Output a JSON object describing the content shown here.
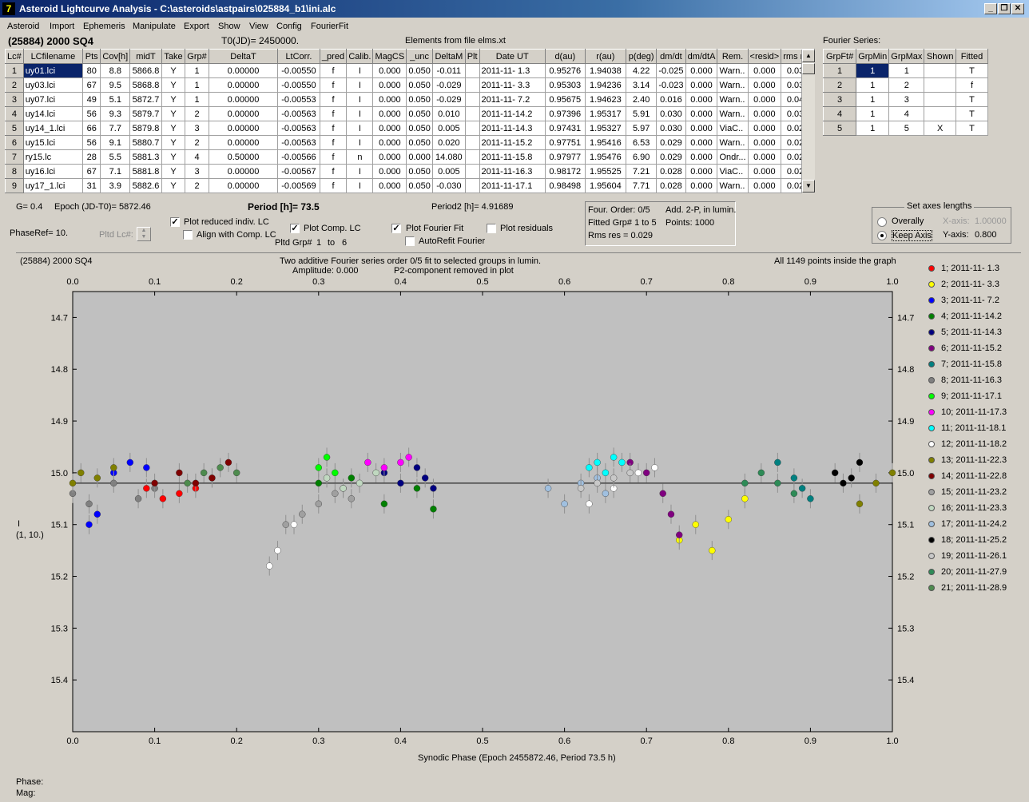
{
  "window": {
    "title": "Asteroid Lightcurve Analysis - C:\\asteroids\\astpairs\\025884_b1\\ini.alc",
    "icon": "7"
  },
  "menu": [
    "Asteroid",
    "Import",
    "Ephemeris",
    "Manipulate",
    "Export",
    "Show",
    "View",
    "Config",
    "FourierFit"
  ],
  "header": {
    "object": "(25884) 2000 SQ4",
    "t0": "T0(JD)= 2450000.",
    "elements": "Elements from file elms.xt",
    "fourier_title": "Fourier Series:"
  },
  "lc_table": {
    "columns": [
      "Lc#",
      "LCfilename",
      "Pts",
      "Cov[h]",
      "midT",
      "Take",
      "Grp#",
      "DeltaT",
      "LtCorr.",
      "_pred",
      "Calib.",
      "MagCS",
      "_unc",
      "DeltaM",
      "Plt",
      "Date UT",
      "d(au)",
      "r(au)",
      "p(deg)",
      "dm/dt",
      "dm/dtA",
      "Rem.",
      "<resid>",
      "rms res"
    ],
    "rows": [
      [
        "1",
        "uy01.lci",
        "80",
        "8.8",
        "5866.8",
        "Y",
        "1",
        "0.00000",
        "-0.00550",
        "f",
        "I",
        "0.000",
        "0.050",
        "-0.011",
        "",
        "2011-11- 1.3",
        "0.95276",
        "1.94038",
        "4.22",
        "-0.025",
        "0.000",
        "Warn..",
        "0.000",
        "0.031"
      ],
      [
        "2",
        "uy03.lci",
        "67",
        "9.5",
        "5868.8",
        "Y",
        "1",
        "0.00000",
        "-0.00550",
        "f",
        "I",
        "0.000",
        "0.050",
        "-0.029",
        "",
        "2011-11- 3.3",
        "0.95303",
        "1.94236",
        "3.14",
        "-0.023",
        "0.000",
        "Warn..",
        "0.000",
        "0.031"
      ],
      [
        "3",
        "uy07.lci",
        "49",
        "5.1",
        "5872.7",
        "Y",
        "1",
        "0.00000",
        "-0.00553",
        "f",
        "I",
        "0.000",
        "0.050",
        "-0.029",
        "",
        "2011-11- 7.2",
        "0.95675",
        "1.94623",
        "2.40",
        "0.016",
        "0.000",
        "Warn..",
        "0.000",
        "0.045"
      ],
      [
        "4",
        "uy14.lci",
        "56",
        "9.3",
        "5879.7",
        "Y",
        "2",
        "0.00000",
        "-0.00563",
        "f",
        "I",
        "0.000",
        "0.050",
        "0.010",
        "",
        "2011-11-14.2",
        "0.97396",
        "1.95317",
        "5.91",
        "0.030",
        "0.000",
        "Warn..",
        "0.000",
        "0.033"
      ],
      [
        "5",
        "uy14_1.lci",
        "66",
        "7.7",
        "5879.8",
        "Y",
        "3",
        "0.00000",
        "-0.00563",
        "f",
        "I",
        "0.000",
        "0.050",
        "0.005",
        "",
        "2011-11-14.3",
        "0.97431",
        "1.95327",
        "5.97",
        "0.030",
        "0.000",
        "ViaC..",
        "0.000",
        "0.027"
      ],
      [
        "6",
        "uy15.lci",
        "56",
        "9.1",
        "5880.7",
        "Y",
        "2",
        "0.00000",
        "-0.00563",
        "f",
        "I",
        "0.000",
        "0.050",
        "0.020",
        "",
        "2011-11-15.2",
        "0.97751",
        "1.95416",
        "6.53",
        "0.029",
        "0.000",
        "Warn..",
        "0.000",
        "0.028"
      ],
      [
        "7",
        "ry15.lc",
        "28",
        "5.5",
        "5881.3",
        "Y",
        "4",
        "0.50000",
        "-0.00566",
        "f",
        "n",
        "0.000",
        "0.000",
        "14.080",
        "",
        "2011-11-15.8",
        "0.97977",
        "1.95476",
        "6.90",
        "0.029",
        "0.000",
        "Ondr...",
        "0.000",
        "0.023"
      ],
      [
        "8",
        "uy16.lci",
        "67",
        "7.1",
        "5881.8",
        "Y",
        "3",
        "0.00000",
        "-0.00567",
        "f",
        "I",
        "0.000",
        "0.050",
        "0.005",
        "",
        "2011-11-16.3",
        "0.98172",
        "1.95525",
        "7.21",
        "0.028",
        "0.000",
        "ViaC..",
        "0.000",
        "0.027"
      ],
      [
        "9",
        "uy17_1.lci",
        "31",
        "3.9",
        "5882.6",
        "Y",
        "2",
        "0.00000",
        "-0.00569",
        "f",
        "I",
        "0.000",
        "0.050",
        "-0.030",
        "",
        "2011-11-17.1",
        "0.98498",
        "1.95604",
        "7.71",
        "0.028",
        "0.000",
        "Warn..",
        "0.000",
        "0.027"
      ]
    ]
  },
  "fourier_table": {
    "columns": [
      "GrpFt#",
      "GrpMin",
      "GrpMax",
      "Shown",
      "Fitted"
    ],
    "rows": [
      [
        "1",
        "1",
        "1",
        "",
        "T"
      ],
      [
        "2",
        "1",
        "2",
        "",
        "f"
      ],
      [
        "3",
        "1",
        "3",
        "",
        "T"
      ],
      [
        "4",
        "1",
        "4",
        "",
        "T"
      ],
      [
        "5",
        "1",
        "5",
        "X",
        "T"
      ]
    ]
  },
  "controls": {
    "g": "G= 0.4",
    "epoch": "Epoch (JD-T0)= 5872.46",
    "period": "Period [h]= 73.5",
    "period2": "Period2 [h]= 4.91689",
    "phaseref": "PhaseRef= 10.",
    "pltd_lc": "Pltd Lc#:",
    "plot_reduced": "Plot reduced indiv. LC",
    "align": "Align with Comp. LC",
    "plot_comp": "Plot Comp. LC",
    "pltd_grp": "Pltd Grp#",
    "grp_from": "1",
    "grp_to_lbl": "to",
    "grp_to": "6",
    "plot_fourier": "Plot Fourier Fit",
    "autorefit": "AutoRefit Fourier",
    "plot_resid": "Plot residuals",
    "info1a": "Four. Order:  0/5",
    "info1b": "Add. 2-P, in lumin.",
    "info2a": "Fitted Grp# 1 to 5",
    "info2b": "Points: 1000",
    "info3": "Rms res     = 0.029",
    "axes_title": "Set axes lengths",
    "overally": "Overally",
    "keep_axis": "Keep Axis",
    "xaxis_lbl": "X-axis:",
    "xaxis_val": "1.00000",
    "yaxis_lbl": "Y-axis:",
    "yaxis_val": "0.800"
  },
  "plot": {
    "top_left": "(25884) 2000 SQ4",
    "top_center1": "Two additive Fourier series order 0/5 fit to selected groups in lumin.",
    "top_center2a": "Amplitude: 0.000",
    "top_center2b": "P2-component removed in plot",
    "top_right": "All 1149 points inside the graph",
    "ylabel1": "I",
    "ylabel2": "(1, 10.)",
    "xlabel": "Synodic Phase (Epoch 2455872.46, Period 73.5 h)",
    "phase": "Phase:",
    "mag": "Mag:"
  },
  "chart_data": {
    "type": "scatter",
    "xlim": [
      0.0,
      1.0
    ],
    "ylim": [
      15.5,
      14.65
    ],
    "x_ticks": [
      "0.0",
      "0.1",
      "0.2",
      "0.3",
      "0.4",
      "0.5",
      "0.6",
      "0.7",
      "0.8",
      "0.9",
      "1.0"
    ],
    "y_ticks": [
      "14.7",
      "14.8",
      "14.9",
      "15.0",
      "15.1",
      "15.2",
      "15.3",
      "15.4"
    ],
    "fit_line": 15.02,
    "series": [
      {
        "name": "1; 2011-11- 1.3",
        "color": "#ff0000",
        "x": [
          0.09,
          0.11,
          0.13,
          0.15,
          0.17
        ],
        "y": [
          15.03,
          15.05,
          15.04,
          15.03,
          15.01
        ]
      },
      {
        "name": "2; 2011-11- 3.3",
        "color": "#ffff00",
        "x": [
          0.74,
          0.76,
          0.78,
          0.8,
          0.82
        ],
        "y": [
          15.13,
          15.1,
          15.15,
          15.09,
          15.05
        ]
      },
      {
        "name": "3; 2011-11- 7.2",
        "color": "#0000ff",
        "x": [
          0.02,
          0.03,
          0.05,
          0.07,
          0.09
        ],
        "y": [
          15.1,
          15.08,
          15.0,
          14.98,
          14.99
        ]
      },
      {
        "name": "4; 2011-11-14.2",
        "color": "#008000",
        "x": [
          0.3,
          0.34,
          0.38,
          0.42,
          0.44
        ],
        "y": [
          15.02,
          15.01,
          15.06,
          15.03,
          15.07
        ]
      },
      {
        "name": "5; 2011-11-14.3",
        "color": "#000080",
        "x": [
          0.38,
          0.4,
          0.42,
          0.43,
          0.44
        ],
        "y": [
          15.0,
          15.02,
          14.99,
          15.01,
          15.03
        ]
      },
      {
        "name": "6; 2011-11-15.2",
        "color": "#800080",
        "x": [
          0.68,
          0.7,
          0.72,
          0.73,
          0.74
        ],
        "y": [
          14.98,
          15.0,
          15.04,
          15.08,
          15.12
        ]
      },
      {
        "name": "7; 2011-11-15.8",
        "color": "#008080",
        "x": [
          0.86,
          0.88,
          0.89,
          0.9
        ],
        "y": [
          14.98,
          15.01,
          15.03,
          15.05
        ]
      },
      {
        "name": "8; 2011-11-16.3",
        "color": "#808080",
        "x": [
          0.0,
          0.02,
          0.05,
          0.08,
          0.1
        ],
        "y": [
          15.04,
          15.06,
          15.02,
          15.05,
          15.03
        ]
      },
      {
        "name": "9; 2011-11-17.1",
        "color": "#00ff00",
        "x": [
          0.3,
          0.31,
          0.32
        ],
        "y": [
          14.99,
          14.97,
          15.0
        ]
      },
      {
        "name": "10; 2011-11-17.3",
        "color": "#ff00ff",
        "x": [
          0.33,
          0.36,
          0.38,
          0.4,
          0.41
        ],
        "y": [
          15.03,
          14.98,
          14.99,
          14.98,
          14.97
        ]
      },
      {
        "name": "11; 2011-11-18.1",
        "color": "#00ffff",
        "x": [
          0.63,
          0.64,
          0.65,
          0.66,
          0.67
        ],
        "y": [
          14.99,
          14.98,
          15.0,
          14.97,
          14.98
        ]
      },
      {
        "name": "12; 2011-11-18.2",
        "color": "#ffffff",
        "x": [
          0.24,
          0.25,
          0.27,
          0.63,
          0.66,
          0.69,
          0.71
        ],
        "y": [
          15.18,
          15.15,
          15.1,
          15.06,
          15.03,
          15.0,
          14.99
        ]
      },
      {
        "name": "13; 2011-11-22.3",
        "color": "#808000",
        "x": [
          0.0,
          0.01,
          0.03,
          0.05,
          0.96,
          0.98,
          1.0
        ],
        "y": [
          15.02,
          15.0,
          15.01,
          14.99,
          15.06,
          15.02,
          15.0
        ]
      },
      {
        "name": "14; 2011-11-22.8",
        "color": "#800000",
        "x": [
          0.1,
          0.13,
          0.15,
          0.17,
          0.19
        ],
        "y": [
          15.02,
          15.0,
          15.02,
          15.01,
          14.98
        ]
      },
      {
        "name": "15; 2011-11-23.2",
        "color": "#a0a0a0",
        "x": [
          0.26,
          0.28,
          0.3,
          0.32,
          0.34
        ],
        "y": [
          15.1,
          15.08,
          15.06,
          15.04,
          15.05
        ]
      },
      {
        "name": "16; 2011-11-23.3",
        "color": "#c0d8c0",
        "x": [
          0.31,
          0.33,
          0.35,
          0.37
        ],
        "y": [
          15.01,
          15.03,
          15.02,
          15.0
        ]
      },
      {
        "name": "17; 2011-11-24.2",
        "color": "#a0c0e0",
        "x": [
          0.58,
          0.6,
          0.62,
          0.64,
          0.65
        ],
        "y": [
          15.03,
          15.06,
          15.02,
          15.01,
          15.04
        ]
      },
      {
        "name": "18; 2011-11-25.2",
        "color": "#000000",
        "x": [
          0.93,
          0.94,
          0.95,
          0.96
        ],
        "y": [
          15.0,
          15.02,
          15.01,
          14.98
        ]
      },
      {
        "name": "19; 2011-11-26.1",
        "color": "#c8c8c8",
        "x": [
          0.62,
          0.64,
          0.66,
          0.68
        ],
        "y": [
          15.03,
          15.02,
          15.01,
          15.0
        ]
      },
      {
        "name": "20; 2011-11-27.9",
        "color": "#2e8b57",
        "x": [
          0.82,
          0.84,
          0.86,
          0.88
        ],
        "y": [
          15.02,
          15.0,
          15.02,
          15.04
        ]
      },
      {
        "name": "21; 2011-11-28.9",
        "color": "#4e8b4e",
        "x": [
          0.14,
          0.16,
          0.18,
          0.2
        ],
        "y": [
          15.02,
          15.0,
          14.99,
          15.0
        ]
      }
    ]
  }
}
